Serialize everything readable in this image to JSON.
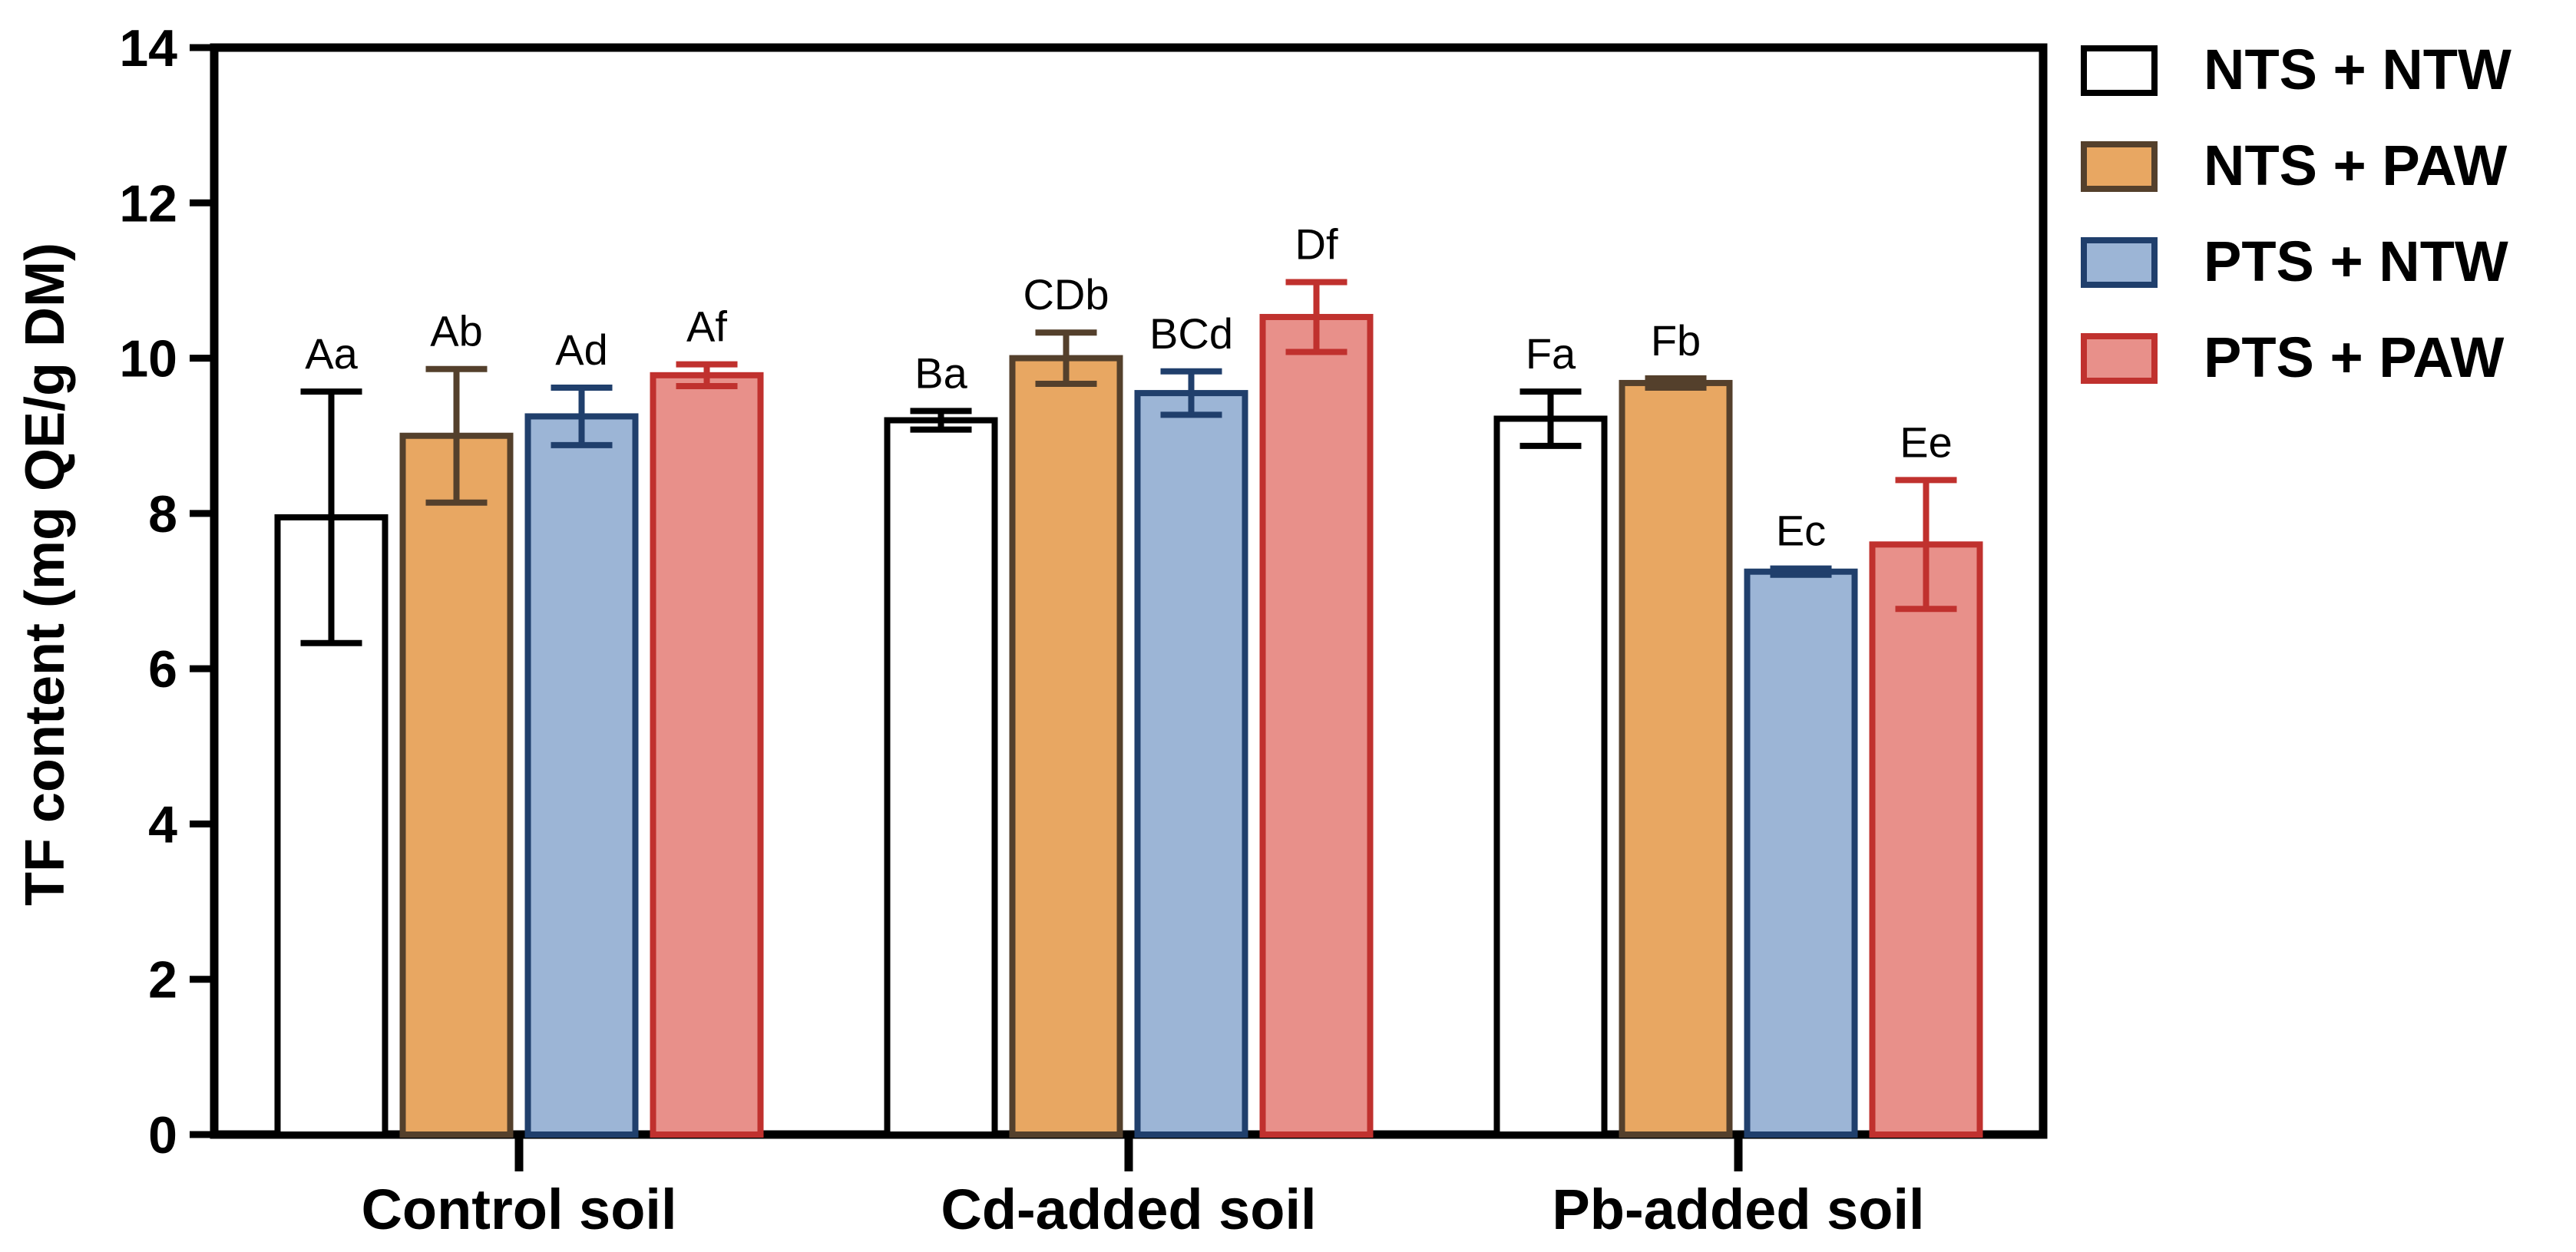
{
  "chart_data": {
    "type": "bar",
    "title": "",
    "xlabel": "",
    "ylabel": "TF content (mg QE/g DM)",
    "ylim": [
      0,
      14
    ],
    "yticks": [
      0,
      2,
      4,
      6,
      8,
      10,
      12,
      14
    ],
    "grid": false,
    "legend_position": "top-right, outside plot area",
    "categories": [
      "Control soil",
      "Cd-added soil",
      "Pb-added soil"
    ],
    "series": [
      {
        "name": "NTS + NTW",
        "fill": "#ffffff",
        "stroke": "#000000",
        "values": [
          7.95,
          9.2,
          9.22
        ],
        "errors": [
          1.62,
          0.12,
          0.35
        ],
        "labels": [
          "Aa",
          "Ba",
          "Fa"
        ]
      },
      {
        "name": "NTS + PAW",
        "fill": "#e8a762",
        "stroke": "#54402c",
        "values": [
          9.0,
          10.0,
          9.68
        ],
        "errors": [
          0.86,
          0.33,
          0.06
        ],
        "labels": [
          "Ab",
          "CDb",
          "Fb"
        ]
      },
      {
        "name": "PTS + NTW",
        "fill": "#9cb5d6",
        "stroke": "#203f6c",
        "values": [
          9.25,
          9.55,
          7.25
        ],
        "errors": [
          0.37,
          0.28,
          0.04
        ],
        "labels": [
          "Ad",
          "BCd",
          "Ec"
        ]
      },
      {
        "name": "PTS + PAW",
        "fill": "#e8908a",
        "stroke": "#c0312e",
        "values": [
          9.78,
          10.53,
          7.6
        ],
        "errors": [
          0.14,
          0.45,
          0.83
        ],
        "labels": [
          "Af",
          "Df",
          "Ee"
        ]
      }
    ]
  }
}
